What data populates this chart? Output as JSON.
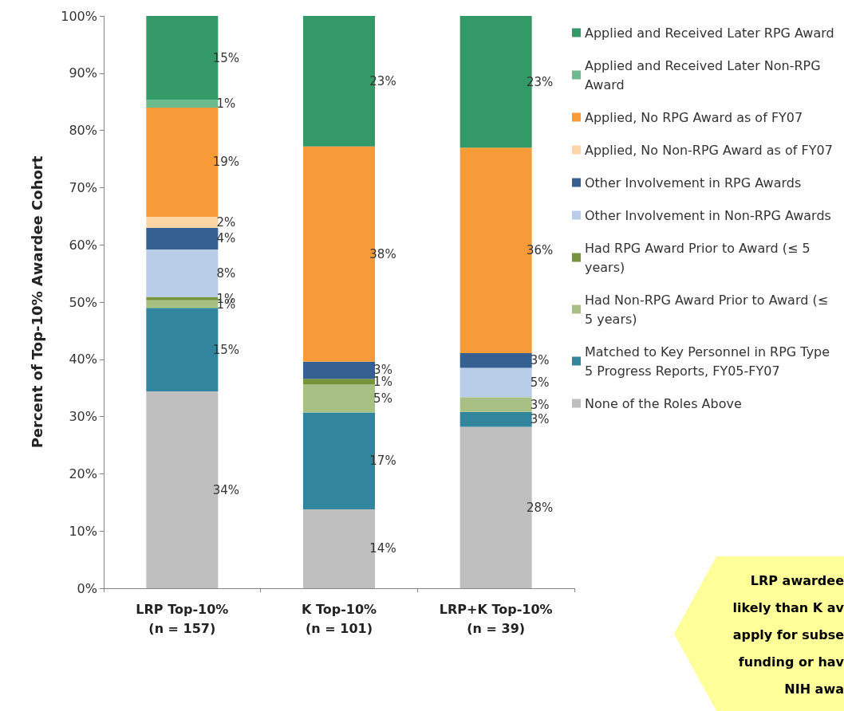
{
  "chart_data": {
    "type": "bar",
    "stacked": true,
    "ylabel": "Percent of Top-10% Awardee Cohort",
    "categories": [
      "LRP Top-10%\n(n = 157)",
      "K Top-10%\n(n = 101)",
      "LRP+K Top-10%\n(n = 39)"
    ],
    "ylim": [
      0,
      100
    ],
    "yticks": [
      {
        "value": 0,
        "label": "0%"
      },
      {
        "value": 10,
        "label": "10%"
      },
      {
        "value": 20,
        "label": "20%"
      },
      {
        "value": 30,
        "label": "30%"
      },
      {
        "value": 40,
        "label": "40%"
      },
      {
        "value": 50,
        "label": "50%"
      },
      {
        "value": 60,
        "label": "60%"
      },
      {
        "value": 70,
        "label": "70%"
      },
      {
        "value": 80,
        "label": "80%"
      },
      {
        "value": 90,
        "label": "90%"
      },
      {
        "value": 100,
        "label": "100%"
      }
    ],
    "grid": false,
    "legend": "right",
    "series": [
      {
        "name": "None of the Roles Above",
        "color": "#bfbfbf",
        "values": [
          34.4,
          13.8,
          28.2
        ],
        "value_labels": [
          "34%",
          "14%",
          "28%"
        ]
      },
      {
        "name": "Matched to Key Personnel in RPG Type 5 Progress Reports, FY05-FY07",
        "color": "#31859c",
        "values": [
          14.6,
          16.9,
          2.6
        ],
        "value_labels": [
          "15%",
          "17%",
          "3%"
        ]
      },
      {
        "name": "Had Non-RPG Award Prior to Award (≤ 5 years)",
        "color": "#a9c085",
        "values": [
          1.3,
          4.9,
          2.6
        ],
        "value_labels": [
          "1%",
          "5%",
          "3%"
        ]
      },
      {
        "name": "Had RPG Award Prior to Award (≤ 5 years)",
        "color": "#77933c",
        "values": [
          0.6,
          1.0,
          null
        ],
        "value_labels": [
          "1%",
          "1%",
          null
        ]
      },
      {
        "name": "Other Involvement in Non-RPG Awards",
        "color": "#b9cde9",
        "values": [
          8.3,
          null,
          5.1
        ],
        "value_labels": [
          "8%",
          null,
          "5%"
        ]
      },
      {
        "name": "Other Involvement in RPG Awards",
        "color": "#366092",
        "values": [
          3.8,
          3.0,
          2.6
        ],
        "value_labels": [
          "4%",
          "3%",
          "3%"
        ]
      },
      {
        "name": "Applied, No Non-RPG Award as of FY07",
        "color": "#fcd5a4",
        "values": [
          1.9,
          null,
          null
        ],
        "value_labels": [
          "2%",
          null,
          null
        ]
      },
      {
        "name": "Applied, No RPG Award as of FY07",
        "color": "#f79a38",
        "values": [
          19.1,
          37.6,
          35.9
        ],
        "value_labels": [
          "19%",
          "38%",
          "36%"
        ]
      },
      {
        "name": "Applied and Received Later Non-RPG Award",
        "color": "#6dbb8d",
        "values": [
          1.3,
          null,
          null
        ],
        "value_labels": [
          "1%",
          null,
          null
        ]
      },
      {
        "name": "Applied and Received Later RPG Award",
        "color": "#339966",
        "values": [
          14.7,
          22.8,
          23.0
        ],
        "value_labels": [
          "15%",
          "23%",
          "23%"
        ]
      }
    ],
    "annotations": [
      "LRP awardee\nlikely than K av\napply for subse\nfunding or hav\nNIH awa"
    ]
  }
}
